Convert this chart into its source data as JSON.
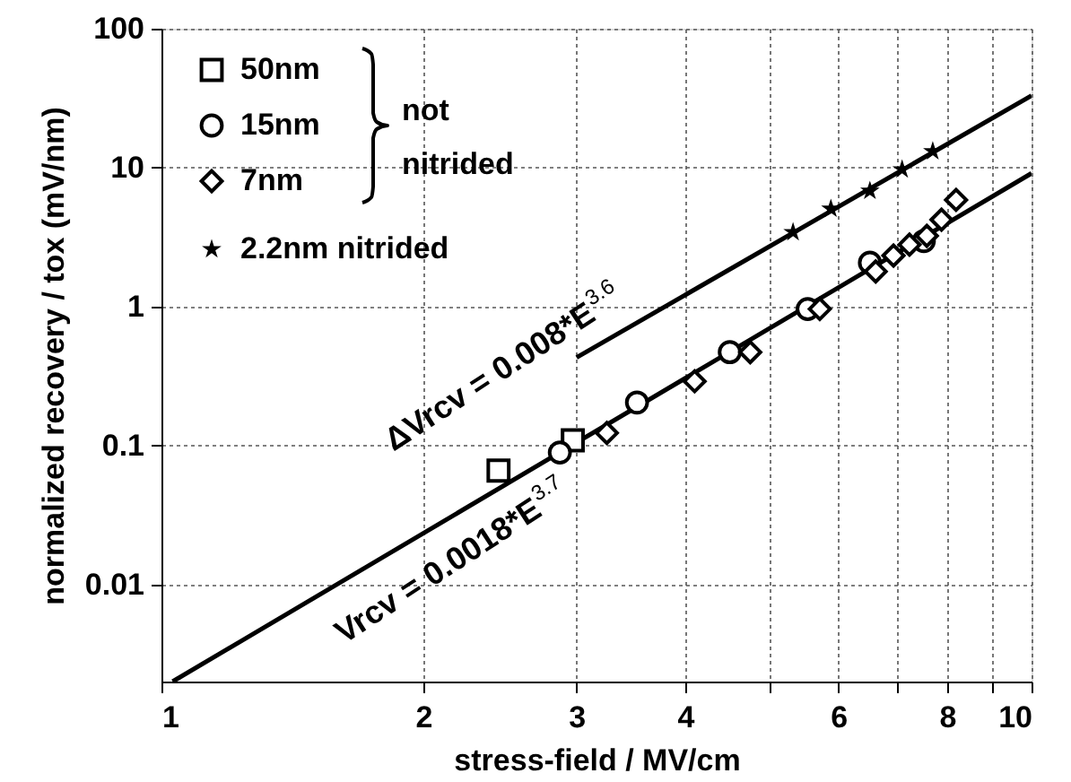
{
  "chart_data": {
    "type": "scatter",
    "xlabel": "stress-field / MV/cm",
    "ylabel": "normalized recovery / tox (mV/nm)",
    "log": "xy",
    "grid": true,
    "legend": "top left",
    "xlim": [
      1,
      10
    ],
    "ylim": [
      0.002,
      100
    ],
    "xticks": [
      1,
      2,
      3,
      4,
      {
        "value": 5,
        "label": null
      },
      6,
      {
        "value": 7,
        "label": null
      },
      8,
      {
        "value": 9,
        "label": null
      },
      10
    ],
    "yticks": [
      0.01,
      0.1,
      1,
      10,
      100
    ],
    "series": [
      {
        "name": "50nm",
        "color": "#000000",
        "marker": "square",
        "x": [
          2.44,
          2.97
        ],
        "values": [
          0.066,
          0.109
        ]
      },
      {
        "name": "15nm",
        "color": "#000000",
        "marker": "circle",
        "x": [
          2.87,
          3.52,
          4.5,
          5.53,
          6.52,
          7.52
        ],
        "values": [
          0.089,
          0.204,
          0.47,
          0.96,
          2.07,
          2.96
        ]
      },
      {
        "name": "7nm",
        "color": "#000000",
        "marker": "diamond",
        "x": [
          3.25,
          4.1,
          4.75,
          5.71,
          6.62,
          6.94,
          7.24,
          7.58,
          7.88,
          8.19
        ],
        "values": [
          0.123,
          0.29,
          0.47,
          0.96,
          1.79,
          2.33,
          2.79,
          3.23,
          4.22,
          5.86
        ]
      },
      {
        "name": "2.2nm nitrided",
        "color": "#000000",
        "marker": "star",
        "x": [
          5.32,
          5.88,
          6.52,
          7.1,
          7.7
        ],
        "values": [
          3.43,
          5.05,
          6.8,
          9.7,
          13.1
        ]
      },
      {
        "type": "line",
        "color": "#000000",
        "x": [
          3.0,
          10
        ],
        "values": [
          0.43,
          33
        ]
      },
      {
        "type": "line",
        "color": "#000000",
        "x": [
          1.03,
          10
        ],
        "values": [
          0.002,
          9.1
        ]
      }
    ],
    "annotations": [
      "ΔVrcv = 0.008*E$^{3.6}$",
      "Vrcv = 0.0018*E$^{3.7}$",
      "not nitrided"
    ]
  }
}
